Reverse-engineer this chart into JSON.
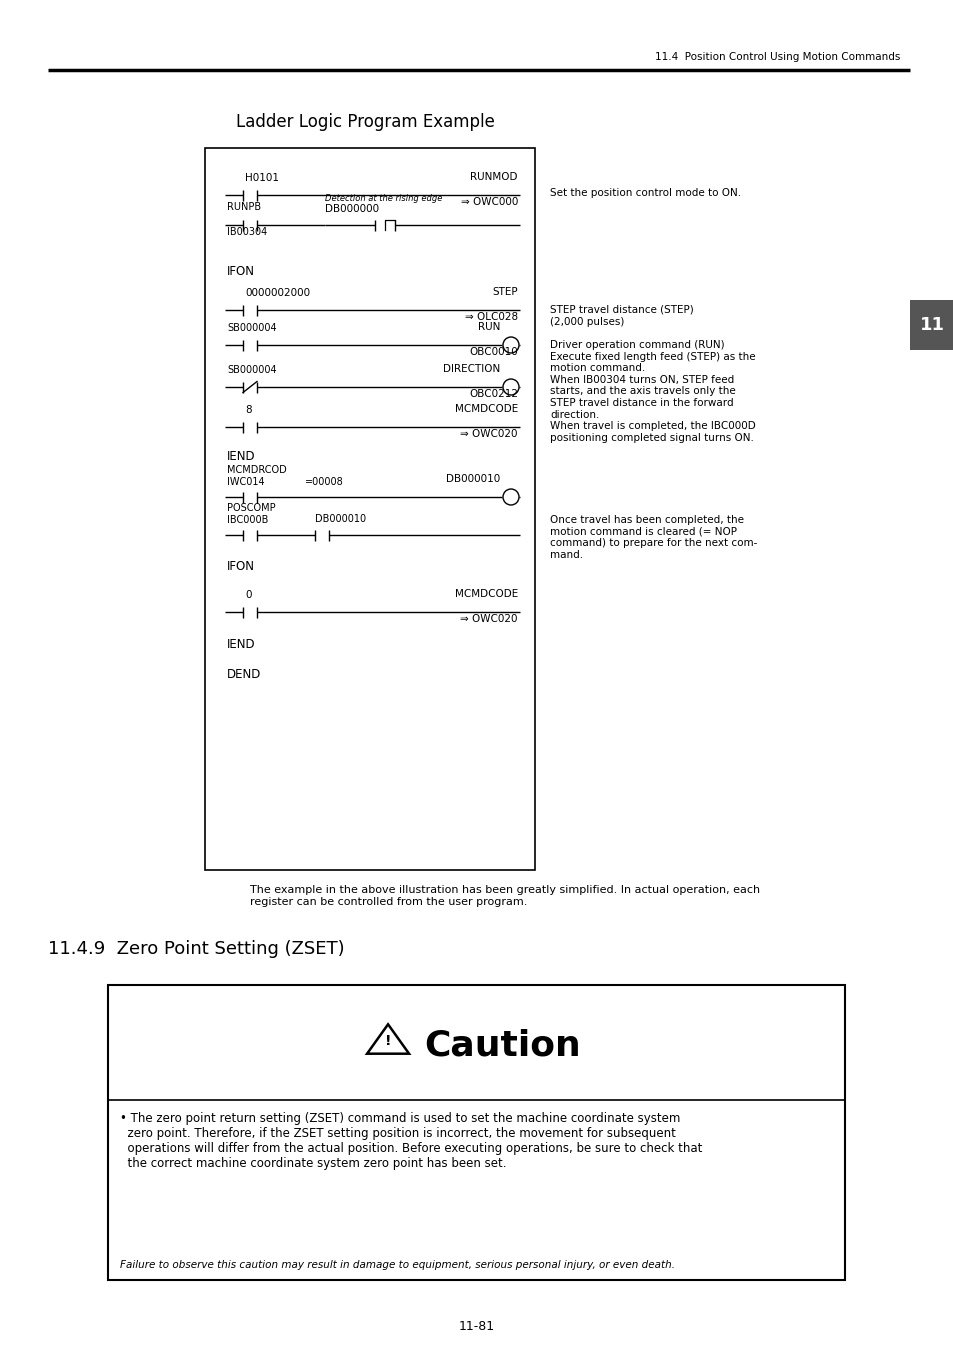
{
  "page_header": "11.4  Position Control Using Motion Commands",
  "page_footer": "11-81",
  "section_number": "11",
  "ladder_title": "Ladder Logic Program Example",
  "section_heading": "11.4.9  Zero Point Setting (ZSET)",
  "note_text": "The example in the above illustration has been greatly simplified. In actual operation, each\nregister can be controlled from the user program.",
  "caution_title": "Caution",
  "caution_bullet": "• The zero point return setting (ZSET) command is used to set the machine coordinate system\n  zero point. Therefore, if the ZSET setting position is incorrect, the movement for subsequent\n  operations will differ from the actual position. Before executing operations, be sure to check that\n  the correct machine coordinate system zero point has been set.",
  "caution_footer": "Failure to observe this caution may result in damage to equipment, serious personal injury, or even death.",
  "ann1": "Set the position control mode to ON.",
  "ann2": "STEP travel distance (STEP)\n(2,000 pulses)",
  "ann3": "Driver operation command (RUN)\nExecute fixed length feed (STEP) as the\nmotion command.\nWhen IB00304 turns ON, STEP feed\nstarts, and the axis travels only the\nSTEP travel distance in the forward\ndirection.\nWhen travel is completed, the IBC000D\npositioning completed signal turns ON.",
  "ann4": "Once travel has been completed, the\nmotion command is cleared (= NOP\ncommand) to prepare for the next com-\nmand.",
  "bg_color": "#ffffff",
  "text_color": "#000000"
}
